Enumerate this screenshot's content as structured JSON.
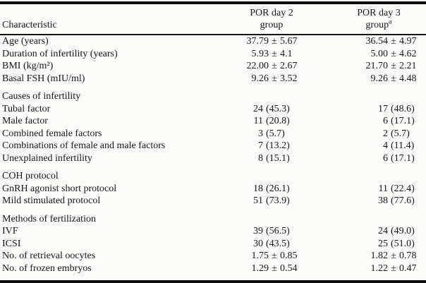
{
  "page": {
    "background": "#fcfcfa",
    "text_color": "#161616",
    "rule_color": "#0c0c0c"
  },
  "table": {
    "header": {
      "characteristic": "Characteristic",
      "col2": {
        "line1": "POR day 2",
        "line2": "group",
        "sup": ""
      },
      "col3": {
        "line1": "POR day 3",
        "line2": "group",
        "sup": "a"
      }
    },
    "rows": [
      {
        "type": "data",
        "label": "Age (years)",
        "por_day2": "37.79 ± 5.67",
        "por_day3": "36.54 ± 4.97"
      },
      {
        "type": "data",
        "label": "Duration of infertility (years)",
        "por_day2": "5.93 ± 4.1",
        "por_day3": "5.00 ± 4.62"
      },
      {
        "type": "data",
        "label": "BMI (kg/m²)",
        "por_day2": "22.00 ± 2.67",
        "por_day3": "21.70 ± 2.21"
      },
      {
        "type": "data",
        "label": "Basal FSH (mIU/ml)",
        "por_day2": "9.26 ± 3.52",
        "por_day3": "9.26 ± 4.48"
      },
      {
        "type": "section",
        "label": "Causes of infertility"
      },
      {
        "type": "data",
        "label": "Tubal factor",
        "por_day2": "24 (45.3)",
        "por_day3": "17 (48.6)"
      },
      {
        "type": "data",
        "label": "Male factor",
        "por_day2": "11 (20.8)",
        "por_day3": "6 (17.1)"
      },
      {
        "type": "data",
        "label": "Combined female factors",
        "por_day2": "3 (5.7)",
        "por_day3": "2 (5.7)"
      },
      {
        "type": "data",
        "label": "Combinations of female and male factors",
        "por_day2": "7 (13.2)",
        "por_day3": "4 (11.4)"
      },
      {
        "type": "data",
        "label": "Unexplained infertility",
        "por_day2": "8 (15.1)",
        "por_day3": "6 (17.1)"
      },
      {
        "type": "section",
        "label": "COH protocol"
      },
      {
        "type": "data",
        "label": "GnRH agonist short protocol",
        "por_day2": "18 (26.1)",
        "por_day3": "11 (22.4)"
      },
      {
        "type": "data",
        "label": "Mild stimulated protocol",
        "por_day2": "51 (73.9)",
        "por_day3": "38 (77.6)"
      },
      {
        "type": "section",
        "label": "Methods of fertilization"
      },
      {
        "type": "data",
        "label": "IVF",
        "por_day2": "39 (56.5)",
        "por_day3": "24 (49.0)"
      },
      {
        "type": "data",
        "label": "ICSI",
        "por_day2": "30 (43.5)",
        "por_day3": "25 (51.0)"
      },
      {
        "type": "data",
        "label": "No. of retrieval oocytes",
        "por_day2": "1.75 ± 0.85",
        "por_day3": "1.82 ± 0.78"
      },
      {
        "type": "data",
        "label": "No. of frozen embryos",
        "por_day2": "1.29 ± 0.54",
        "por_day3": "1.22 ± 0.47"
      }
    ]
  }
}
